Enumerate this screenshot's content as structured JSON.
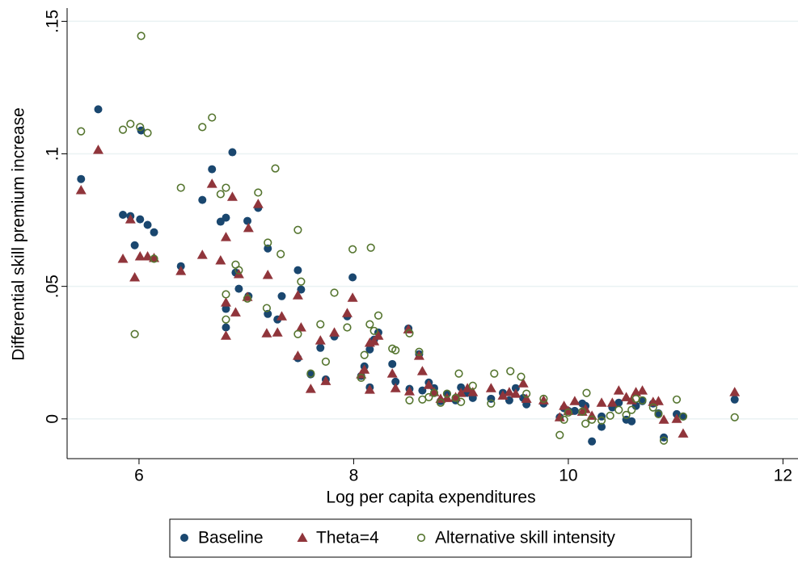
{
  "chart_data": {
    "type": "scatter",
    "xlabel": "Log per capita expenditures",
    "ylabel": "Differential skill premium increase",
    "xlim": [
      5.33,
      12.14
    ],
    "ylim": [
      -0.015,
      0.155
    ],
    "xticks": [
      6,
      8,
      10,
      12
    ],
    "yticks": [
      0,
      {
        "value": 0.05,
        "label": ".05"
      },
      {
        "value": 0.1,
        "label": ".1"
      },
      {
        "value": 0.15,
        "label": ".15"
      }
    ],
    "grid": true,
    "legend": "bottom",
    "series": [
      {
        "name": "Baseline",
        "color": "#1a476f",
        "marker": "circle",
        "x": [
          5.46,
          5.62,
          5.85,
          5.92,
          5.96,
          6.01,
          6.02,
          6.08,
          6.14,
          6.39,
          6.59,
          6.68,
          6.76,
          6.81,
          6.81,
          6.81,
          6.87,
          6.9,
          6.93,
          7.01,
          7.02,
          7.11,
          7.2,
          7.2,
          7.29,
          7.33,
          7.48,
          7.51,
          7.48,
          7.6,
          7.69,
          7.74,
          7.82,
          7.94,
          7.99,
          8.07,
          8.1,
          8.15,
          8.15,
          8.19,
          8.23,
          8.36,
          8.39,
          8.51,
          8.52,
          8.61,
          8.64,
          8.7,
          8.75,
          8.81,
          8.87,
          8.95,
          9.0,
          9.06,
          9.11,
          9.28,
          9.39,
          9.45,
          9.51,
          9.58,
          9.61,
          9.77,
          9.92,
          9.96,
          10.0,
          10.06,
          10.13,
          10.16,
          10.22,
          10.31,
          10.31,
          10.41,
          10.47,
          10.54,
          10.59,
          10.63,
          10.69,
          10.79,
          10.84,
          10.89,
          11.01,
          11.07,
          11.55
        ],
        "values": [
          0.0905,
          0.1168,
          0.077,
          0.0765,
          0.0655,
          0.0753,
          0.1088,
          0.0732,
          0.0704,
          0.0576,
          0.0826,
          0.0942,
          0.0744,
          0.0759,
          0.0415,
          0.0345,
          0.1006,
          0.0552,
          0.0491,
          0.0747,
          0.0463,
          0.0796,
          0.0643,
          0.0396,
          0.0375,
          0.0463,
          0.0561,
          0.0488,
          0.0229,
          0.0168,
          0.0268,
          0.0149,
          0.0311,
          0.0387,
          0.0534,
          0.0162,
          0.0198,
          0.0119,
          0.0262,
          0.0299,
          0.0326,
          0.0207,
          0.014,
          0.0341,
          0.0113,
          0.0244,
          0.0107,
          0.0137,
          0.0116,
          0.0067,
          0.0095,
          0.007,
          0.0119,
          0.0098,
          0.0079,
          0.0076,
          0.0098,
          0.007,
          0.0116,
          0.0079,
          0.0055,
          0.0058,
          0.0006,
          0.004,
          0.003,
          0.003,
          0.0058,
          0.0049,
          -0.0085,
          0.0009,
          -0.003,
          0.0043,
          0.0061,
          -0.0003,
          -0.0009,
          0.0049,
          0.0067,
          0.0058,
          0.0021,
          -0.007,
          0.0018,
          0.0009,
          0.0073
        ]
      },
      {
        "name": "Theta=4",
        "color": "#90353b",
        "marker": "triangle",
        "x": [
          5.46,
          5.62,
          5.85,
          5.92,
          5.96,
          6.01,
          6.08,
          6.14,
          6.39,
          6.59,
          6.68,
          6.76,
          6.81,
          6.81,
          6.81,
          6.87,
          6.9,
          6.93,
          7.01,
          7.02,
          7.11,
          7.2,
          7.19,
          7.29,
          7.33,
          7.48,
          7.51,
          7.48,
          7.6,
          7.69,
          7.74,
          7.82,
          7.94,
          7.99,
          8.07,
          8.1,
          8.15,
          8.15,
          8.19,
          8.23,
          8.36,
          8.39,
          8.51,
          8.52,
          8.61,
          8.64,
          8.7,
          8.75,
          8.81,
          8.87,
          8.95,
          9.0,
          9.06,
          9.11,
          9.28,
          9.39,
          9.45,
          9.51,
          9.58,
          9.61,
          9.77,
          9.92,
          9.96,
          10.0,
          10.06,
          10.13,
          10.16,
          10.22,
          10.31,
          10.41,
          10.47,
          10.54,
          10.59,
          10.63,
          10.69,
          10.79,
          10.84,
          10.89,
          11.01,
          11.07,
          11.55
        ],
        "values": [
          0.0863,
          0.1015,
          0.0604,
          0.0753,
          0.0534,
          0.0613,
          0.0613,
          0.0607,
          0.0558,
          0.0619,
          0.0887,
          0.0598,
          0.0439,
          0.0686,
          0.0314,
          0.0838,
          0.0402,
          0.0546,
          0.046,
          0.072,
          0.0811,
          0.0543,
          0.0323,
          0.0326,
          0.0387,
          0.0466,
          0.0345,
          0.0238,
          0.0113,
          0.0296,
          0.0143,
          0.0326,
          0.0399,
          0.0457,
          0.0168,
          0.0186,
          0.011,
          0.0287,
          0.0293,
          0.0314,
          0.0171,
          0.0116,
          0.0338,
          0.0104,
          0.0238,
          0.018,
          0.0128,
          0.0101,
          0.0076,
          0.0079,
          0.0082,
          0.0098,
          0.0116,
          0.0101,
          0.0116,
          0.0088,
          0.0101,
          0.0095,
          0.0134,
          0.0076,
          0.007,
          0.0006,
          0.0049,
          0.003,
          0.0067,
          0.0027,
          0.0037,
          0.0012,
          0.0061,
          0.0061,
          0.0107,
          0.0082,
          0.007,
          0.0101,
          0.0107,
          0.0064,
          0.0067,
          -0.0003,
          0,
          -0.0055,
          0.0101
        ]
      },
      {
        "name": "Alternative skill intensity",
        "color": "#55752f",
        "marker": "hollow-circle",
        "x": [
          5.46,
          5.85,
          5.92,
          5.96,
          6.01,
          6.02,
          6.08,
          6.14,
          6.39,
          6.59,
          6.68,
          6.76,
          6.81,
          6.81,
          6.81,
          6.9,
          6.93,
          7.01,
          7.11,
          7.2,
          7.19,
          7.27,
          7.32,
          7.48,
          7.51,
          7.48,
          7.6,
          7.69,
          7.74,
          7.82,
          7.94,
          7.99,
          8.07,
          8.1,
          8.15,
          8.16,
          8.19,
          8.23,
          8.36,
          8.39,
          8.52,
          8.52,
          8.61,
          8.64,
          8.7,
          8.75,
          8.81,
          8.87,
          8.95,
          8.98,
          9.0,
          9.11,
          9.28,
          9.31,
          9.46,
          9.56,
          9.61,
          9.77,
          9.92,
          9.96,
          10.0,
          10.13,
          10.17,
          10.16,
          10.22,
          10.31,
          10.39,
          10.47,
          10.54,
          10.59,
          10.63,
          10.69,
          10.79,
          10.84,
          10.89,
          11.01,
          11.07,
          11.55
        ],
        "values": [
          0.1085,
          0.1091,
          0.1113,
          0.032,
          0.1101,
          0.1445,
          0.1079,
          0.0604,
          0.0872,
          0.1101,
          0.1137,
          0.0848,
          0.047,
          0.0872,
          0.0375,
          0.0582,
          0.0561,
          0.0454,
          0.0854,
          0.0665,
          0.0418,
          0.0945,
          0.0622,
          0.0713,
          0.0518,
          0.032,
          0.0171,
          0.0357,
          0.0216,
          0.0476,
          0.0345,
          0.064,
          0.0155,
          0.0241,
          0.0357,
          0.0646,
          0.0332,
          0.039,
          0.0265,
          0.0259,
          0.0323,
          0.007,
          0.0253,
          0.0073,
          0.0082,
          0.0098,
          0.0061,
          0.0095,
          0.0079,
          0.0171,
          0.0064,
          0.0125,
          0.0058,
          0.0171,
          0.018,
          0.0159,
          0.0095,
          0.0076,
          -0.0061,
          -0.0003,
          0.0024,
          0.0027,
          0.0098,
          -0.0018,
          -0.0003,
          -0.0006,
          0.0012,
          0.0034,
          0.0015,
          0.0034,
          0.0076,
          0.007,
          0.0043,
          0.0018,
          -0.0082,
          0.0073,
          0.0009,
          0.0006
        ]
      }
    ]
  }
}
